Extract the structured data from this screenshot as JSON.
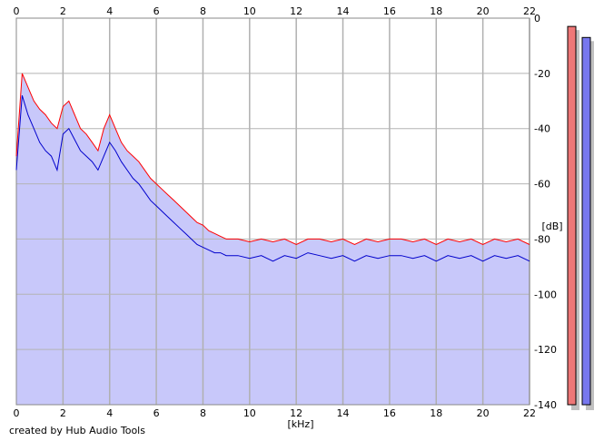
{
  "chart_data": {
    "type": "area",
    "xlabel": "[kHz]",
    "ylabel": "[dB]",
    "xlim": [
      0,
      22
    ],
    "ylim": [
      -140,
      0
    ],
    "x_ticks": [
      "0",
      "2",
      "4",
      "6",
      "8",
      "10",
      "12",
      "14",
      "16",
      "18",
      "20",
      "22"
    ],
    "y_ticks": [
      "0",
      "-20",
      "-40",
      "-60",
      "-80",
      "-100",
      "-120",
      "-140"
    ],
    "grid": true,
    "series": [
      {
        "color": "#ff0000",
        "x": [
          0,
          0.25,
          0.5,
          0.75,
          1.0,
          1.25,
          1.5,
          1.75,
          2.0,
          2.25,
          2.5,
          2.75,
          3.0,
          3.25,
          3.5,
          3.75,
          4.0,
          4.25,
          4.5,
          4.75,
          5.0,
          5.25,
          5.5,
          5.75,
          6.0,
          6.25,
          6.5,
          6.75,
          7.0,
          7.25,
          7.5,
          7.75,
          8.0,
          8.25,
          8.5,
          8.75,
          9.0,
          9.5,
          10.0,
          10.5,
          11.0,
          11.5,
          12.0,
          12.5,
          13.0,
          13.5,
          14.0,
          14.5,
          15.0,
          15.5,
          16.0,
          16.5,
          17.0,
          17.5,
          18.0,
          18.5,
          19.0,
          19.5,
          20.0,
          20.5,
          21.0,
          21.5,
          22.0
        ],
        "values": [
          -50,
          -20,
          -25,
          -30,
          -33,
          -35,
          -38,
          -40,
          -32,
          -30,
          -35,
          -40,
          -42,
          -45,
          -48,
          -40,
          -35,
          -40,
          -45,
          -48,
          -50,
          -52,
          -55,
          -58,
          -60,
          -62,
          -64,
          -66,
          -68,
          -70,
          -72,
          -74,
          -75,
          -77,
          -78,
          -79,
          -80,
          -80,
          -81,
          -80,
          -81,
          -80,
          -82,
          -80,
          -80,
          -81,
          -80,
          -82,
          -80,
          -81,
          -80,
          -80,
          -81,
          -80,
          -82,
          -80,
          -81,
          -80,
          -82,
          -80,
          -81,
          -80,
          -82
        ]
      },
      {
        "color": "#0000cc",
        "x": [
          0,
          0.25,
          0.5,
          0.75,
          1.0,
          1.25,
          1.5,
          1.75,
          2.0,
          2.25,
          2.5,
          2.75,
          3.0,
          3.25,
          3.5,
          3.75,
          4.0,
          4.25,
          4.5,
          4.75,
          5.0,
          5.25,
          5.5,
          5.75,
          6.0,
          6.25,
          6.5,
          6.75,
          7.0,
          7.25,
          7.5,
          7.75,
          8.0,
          8.25,
          8.5,
          8.75,
          9.0,
          9.5,
          10.0,
          10.5,
          11.0,
          11.5,
          12.0,
          12.5,
          13.0,
          13.5,
          14.0,
          14.5,
          15.0,
          15.5,
          16.0,
          16.5,
          17.0,
          17.5,
          18.0,
          18.5,
          19.0,
          19.5,
          20.0,
          20.5,
          21.0,
          21.5,
          22.0
        ],
        "values": [
          -55,
          -28,
          -35,
          -40,
          -45,
          -48,
          -50,
          -55,
          -42,
          -40,
          -44,
          -48,
          -50,
          -52,
          -55,
          -50,
          -45,
          -48,
          -52,
          -55,
          -58,
          -60,
          -63,
          -66,
          -68,
          -70,
          -72,
          -74,
          -76,
          -78,
          -80,
          -82,
          -83,
          -84,
          -85,
          -85,
          -86,
          -86,
          -87,
          -86,
          -88,
          -86,
          -87,
          -85,
          -86,
          -87,
          -86,
          -88,
          -86,
          -87,
          -86,
          -86,
          -87,
          -86,
          -88,
          -86,
          -87,
          -86,
          -88,
          -86,
          -87,
          -86,
          -88
        ]
      }
    ]
  },
  "level_meters": [
    {
      "level_db": -3,
      "color": "#ee7777"
    },
    {
      "level_db": -7,
      "color": "#7777ee"
    }
  ],
  "footer": {
    "credit": "created by Hub Audio Tools"
  }
}
